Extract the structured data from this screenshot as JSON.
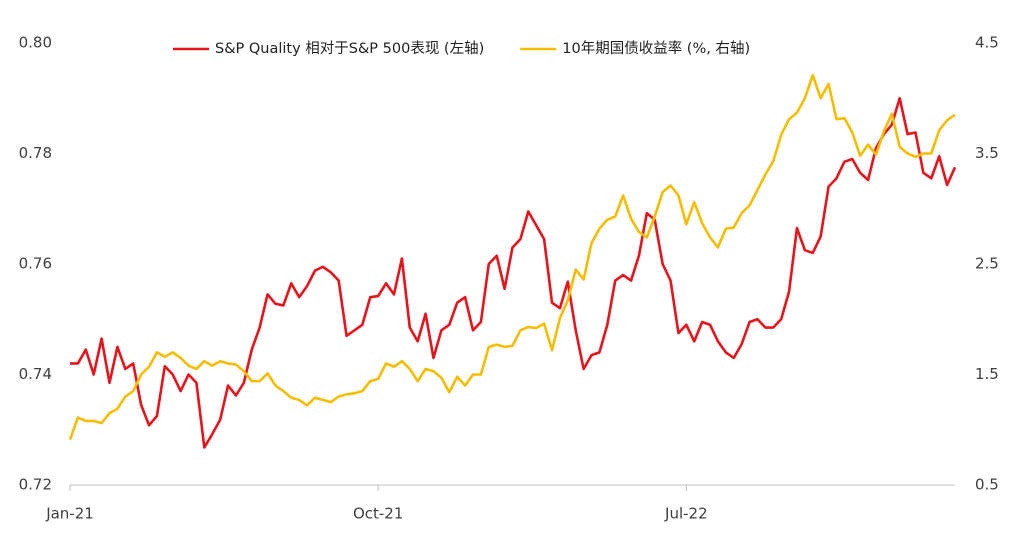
{
  "chart_data": {
    "type": "line",
    "legend_position": "top",
    "categories": [
      "Jan-21",
      null,
      null,
      null,
      null,
      null,
      null,
      null,
      null,
      null,
      null,
      null,
      null,
      null,
      null,
      null,
      null,
      null,
      null,
      null,
      null,
      null,
      null,
      null,
      null,
      null,
      null,
      null,
      null,
      null,
      null,
      null,
      null,
      null,
      null,
      null,
      null,
      null,
      null,
      "Oct-21",
      null,
      null,
      null,
      null,
      null,
      null,
      null,
      null,
      null,
      null,
      null,
      null,
      null,
      null,
      null,
      null,
      null,
      null,
      null,
      null,
      null,
      null,
      null,
      null,
      null,
      null,
      null,
      null,
      null,
      null,
      null,
      null,
      null,
      null,
      null,
      null,
      null,
      null,
      "Jul-22",
      null,
      null,
      null,
      null,
      null,
      null,
      null,
      null,
      null,
      null,
      null,
      null,
      null,
      null,
      null,
      null,
      null,
      null,
      null,
      null,
      null,
      null,
      null,
      null,
      null,
      null,
      null,
      null,
      null,
      null,
      null,
      null,
      null,
      null
    ],
    "series": [
      {
        "name": "S&P Quality 相对于S&P 500表现 (左轴)",
        "color": "#e8141c",
        "axis": "y",
        "values": [
          0.742,
          0.742,
          0.7445,
          0.74,
          0.7465,
          0.7385,
          0.745,
          0.741,
          0.742,
          0.7345,
          0.7308,
          0.7325,
          0.7415,
          0.74,
          0.737,
          0.74,
          0.7385,
          0.7268,
          0.7292,
          0.7318,
          0.738,
          0.7362,
          0.7385,
          0.7445,
          0.7485,
          0.7545,
          0.7528,
          0.7525,
          0.7565,
          0.754,
          0.756,
          0.7588,
          0.7595,
          0.7585,
          0.757,
          0.747,
          0.748,
          0.749,
          0.754,
          0.7542,
          0.7565,
          0.7545,
          0.761,
          0.7485,
          0.746,
          0.751,
          0.743,
          0.748,
          0.749,
          0.753,
          0.754,
          0.748,
          0.7495,
          0.76,
          0.7615,
          0.7555,
          0.763,
          0.7645,
          0.7695,
          0.767,
          0.7645,
          0.753,
          0.752,
          0.7568,
          0.748,
          0.741,
          0.7435,
          0.744,
          0.749,
          0.757,
          0.758,
          0.757,
          0.7615,
          0.7692,
          0.768,
          0.76,
          0.757,
          0.7475,
          0.749,
          0.746,
          0.7495,
          0.749,
          0.746,
          0.744,
          0.743,
          0.7455,
          0.7495,
          0.75,
          0.7485,
          0.7485,
          0.75,
          0.755,
          0.7665,
          0.7625,
          0.762,
          0.765,
          0.774,
          0.7755,
          0.7785,
          0.779,
          0.7765,
          0.7752,
          0.781,
          0.7835,
          0.7852,
          0.79,
          0.7835,
          0.7838,
          0.7765,
          0.7755,
          0.7795,
          0.7743,
          0.7775
        ]
      },
      {
        "name": "10年期国债收益率 (%, 右轴)",
        "color": "#f5bd00",
        "axis": "y2",
        "values": [
          0.91,
          1.11,
          1.08,
          1.08,
          1.06,
          1.15,
          1.19,
          1.3,
          1.35,
          1.5,
          1.57,
          1.7,
          1.66,
          1.7,
          1.65,
          1.58,
          1.55,
          1.62,
          1.58,
          1.62,
          1.6,
          1.59,
          1.53,
          1.44,
          1.44,
          1.51,
          1.4,
          1.35,
          1.29,
          1.27,
          1.22,
          1.29,
          1.27,
          1.25,
          1.3,
          1.32,
          1.33,
          1.35,
          1.44,
          1.46,
          1.6,
          1.57,
          1.62,
          1.55,
          1.44,
          1.55,
          1.53,
          1.47,
          1.34,
          1.48,
          1.4,
          1.5,
          1.5,
          1.75,
          1.77,
          1.75,
          1.76,
          1.9,
          1.93,
          1.92,
          1.96,
          1.72,
          2.01,
          2.17,
          2.45,
          2.36,
          2.69,
          2.82,
          2.9,
          2.93,
          3.12,
          2.91,
          2.79,
          2.74,
          2.93,
          3.15,
          3.21,
          3.12,
          2.86,
          3.06,
          2.87,
          2.74,
          2.65,
          2.82,
          2.83,
          2.96,
          3.03,
          3.17,
          3.31,
          3.43,
          3.67,
          3.81,
          3.87,
          4.0,
          4.21,
          4.0,
          4.13,
          3.81,
          3.82,
          3.69,
          3.48,
          3.58,
          3.49,
          3.7,
          3.86,
          3.56,
          3.5,
          3.47,
          3.5,
          3.5,
          3.71,
          3.8,
          3.85
        ]
      }
    ],
    "ylim": [
      0.72,
      0.8
    ],
    "yticks": [
      0.72,
      0.74,
      0.76,
      0.78,
      {
        "value": 0.8,
        "label": "0.80"
      }
    ],
    "y2lim": [
      0.5,
      4.5
    ],
    "y2ticks": [
      0.5,
      1.5,
      2.5,
      3.5,
      4.5
    ],
    "grid": false
  }
}
